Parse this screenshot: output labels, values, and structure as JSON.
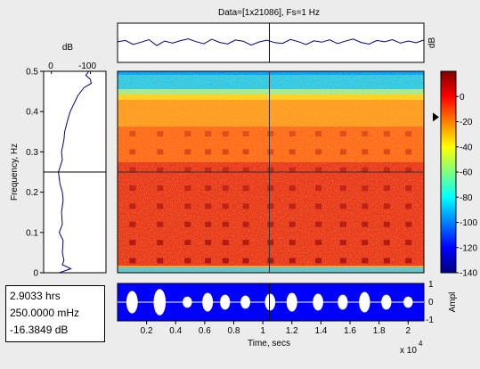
{
  "window": {
    "title": "Data=[1x21086], Fs=1 Hz"
  },
  "readout": {
    "time": "2.9033 hrs",
    "frequency": "250.0000 mHz",
    "level": "-16.3849 dB"
  },
  "cursor": {
    "time_s": 10450,
    "frequency_hz": 0.25,
    "colorbar_level_db": -16.3849
  },
  "colors": {
    "background": "#ececec",
    "trace": "#000080",
    "timeseries_bg": "#0000ff",
    "timeseries_trace": "#ffffff"
  },
  "chart_data": [
    {
      "type": "heatmap",
      "title": "Data=[1x21086], Fs=1 Hz",
      "xlabel": "Time, secs",
      "ylabel": "Frequency, Hz",
      "x_multiplier": "x 10",
      "x_multiplier_exp": "4",
      "xlim": [
        0,
        21086
      ],
      "ylim": [
        0,
        0.5
      ],
      "x_ticks": [
        2000,
        4000,
        6000,
        8000,
        10000,
        12000,
        14000,
        16000,
        18000,
        20000
      ],
      "x_tick_labels": [
        "0.2",
        "0.4",
        "0.6",
        "0.8",
        "1",
        "1.2",
        "1.4",
        "1.6",
        "1.8",
        "2"
      ],
      "y_ticks": [
        0,
        0.1,
        0.2,
        0.3,
        0.4,
        0.5
      ],
      "y_tick_labels": [
        "0",
        "0.1",
        "0.2",
        "0.3",
        "0.4",
        "0.5"
      ],
      "grid": false
    },
    {
      "type": "line",
      "name": "spectrum-panel",
      "xlabel": "dB",
      "x_ticks": [
        0,
        -100
      ],
      "x_tick_labels": [
        "0",
        "-100"
      ],
      "xlim": [
        20,
        -140
      ],
      "ylim": [
        0,
        0.5
      ],
      "frequency": [
        0.0,
        0.01,
        0.02,
        0.03,
        0.05,
        0.08,
        0.1,
        0.12,
        0.15,
        0.18,
        0.2,
        0.22,
        0.25,
        0.28,
        0.3,
        0.33,
        0.35,
        0.38,
        0.4,
        0.42,
        0.44,
        0.46,
        0.47,
        0.48,
        0.49,
        0.5
      ],
      "level_db": [
        -20,
        -50,
        -28,
        -32,
        -28,
        -30,
        -20,
        -28,
        -26,
        -30,
        -28,
        -22,
        -18,
        -28,
        -26,
        -32,
        -34,
        -42,
        -48,
        -58,
        -68,
        -84,
        -102,
        -100,
        -88,
        -96
      ]
    },
    {
      "type": "line",
      "name": "power-panel",
      "ylabel": "dB",
      "xlim": [
        0,
        21086
      ],
      "ylim": [
        -10,
        10
      ],
      "level_db": [
        0.5,
        1.2,
        -0.8,
        0.3,
        1.6,
        -1.4,
        0.9,
        -0.2,
        1.1,
        2.0,
        0.6,
        -0.5,
        1.8,
        0.2,
        -0.6,
        1.4,
        0.8,
        -1.2,
        0.4,
        1.3,
        0.1,
        -0.3,
        1.7,
        0.6,
        -0.9,
        1.0,
        0.3,
        1.5,
        -0.4,
        0.8,
        1.9,
        0.2,
        -0.7,
        1.2,
        0.5,
        1.6,
        -0.2,
        0.9,
        0.0,
        1.4
      ]
    },
    {
      "type": "line",
      "name": "timeseries-panel",
      "ylabel": "Ampl",
      "xlim": [
        0,
        21086
      ],
      "ylim": [
        -1,
        1
      ],
      "y_ticks": [
        1,
        0,
        -1
      ],
      "y_tick_labels": [
        "1",
        "0",
        "-1"
      ],
      "events_time_s": [
        1000,
        2900,
        4800,
        6200,
        7400,
        8800,
        10500,
        12000,
        13800,
        15500,
        17000,
        18500,
        20000
      ],
      "events_amplitude": [
        0.6,
        0.7,
        0.3,
        0.5,
        0.4,
        0.35,
        0.45,
        0.5,
        0.45,
        0.4,
        0.55,
        0.4,
        0.3
      ]
    },
    {
      "type": "heatmap",
      "name": "colorbar",
      "ylim": [
        -140,
        20
      ],
      "y_ticks": [
        0,
        -20,
        -40,
        -60,
        -80,
        -100,
        -120,
        -140
      ],
      "y_tick_labels": [
        "0",
        "-20",
        "-40",
        "-60",
        "-80",
        "-100",
        "-120",
        "-140"
      ]
    }
  ]
}
